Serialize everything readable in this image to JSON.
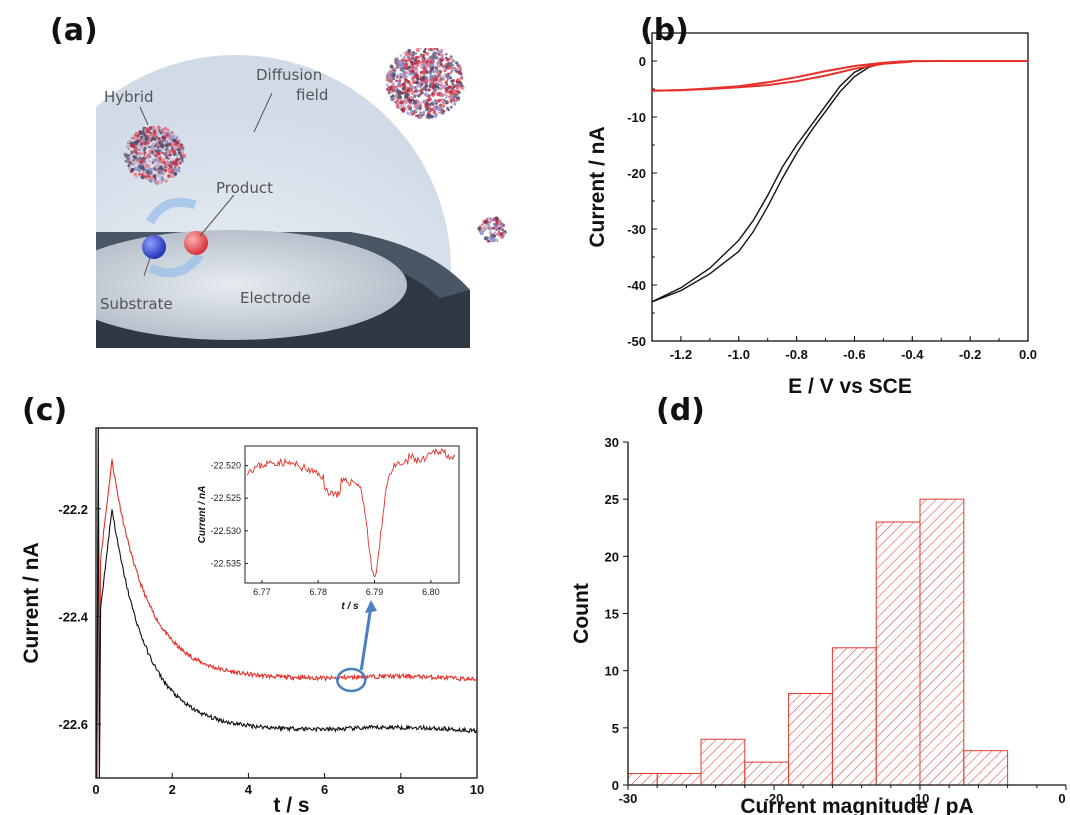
{
  "panels": {
    "a": {
      "label": "(a)",
      "labels": {
        "hybrid": "Hybrid",
        "diffusion1": "Diffusion",
        "diffusion2": "field",
        "product": "Product",
        "substrate": "Substrate",
        "electrode": "Electrode"
      }
    },
    "b": {
      "label": "(b)"
    },
    "c": {
      "label": "(c)"
    },
    "d": {
      "label": "(d)"
    }
  },
  "colors": {
    "red": "#e8302a",
    "black": "#111111",
    "arrow": "#4a7fc1",
    "hatch": "#e23a32"
  },
  "chart_data": [
    {
      "panel": "b",
      "type": "line",
      "xlabel": "E / V vs SCE",
      "ylabel": "Current / nA",
      "xlim": [
        -1.3,
        0.0
      ],
      "ylim": [
        -50,
        5
      ],
      "xticks": [
        -1.2,
        -1.0,
        -0.8,
        -0.6,
        -0.4,
        -0.2,
        0.0
      ],
      "xtick_labels": [
        "-1.2",
        "-1.0",
        "-0.8",
        "-0.6",
        "-0.4",
        "-0.2",
        "0.0"
      ],
      "yticks": [
        0,
        -10,
        -20,
        -30,
        -40,
        -50
      ],
      "ytick_labels": [
        "0",
        "-10",
        "-20",
        "-30",
        "-40",
        "-50"
      ],
      "series": [
        {
          "color": "black",
          "x": [
            -1.3,
            -1.2,
            -1.1,
            -1.0,
            -0.95,
            -0.9,
            -0.85,
            -0.8,
            -0.75,
            -0.7,
            -0.65,
            -0.6,
            -0.55,
            -0.5,
            -0.45,
            -0.4,
            -0.3,
            -0.2,
            -0.1,
            0.0
          ],
          "y": [
            -43,
            -40.5,
            -37,
            -32,
            -28.5,
            -24,
            -19,
            -15,
            -11.5,
            -8,
            -4.5,
            -2,
            -0.8,
            -0.3,
            -0.1,
            0,
            0,
            0,
            0,
            0
          ]
        },
        {
          "color": "black",
          "x": [
            -1.3,
            -1.2,
            -1.1,
            -1.0,
            -0.95,
            -0.9,
            -0.85,
            -0.8,
            -0.75,
            -0.7,
            -0.65,
            -0.6,
            -0.55,
            -0.5,
            -0.45,
            -0.4
          ],
          "y": [
            -43,
            -41,
            -38,
            -34,
            -30.5,
            -26,
            -21,
            -16.5,
            -12.5,
            -9,
            -5.5,
            -2.8,
            -1.1,
            -0.4,
            -0.1,
            0
          ]
        },
        {
          "color": "red",
          "x": [
            -1.3,
            -1.2,
            -1.1,
            -1.0,
            -0.9,
            -0.8,
            -0.7,
            -0.6,
            -0.5,
            -0.4,
            -0.3,
            -0.2,
            -0.1,
            0.0
          ],
          "y": [
            -5.3,
            -5.2,
            -4.9,
            -4.5,
            -3.8,
            -2.9,
            -1.8,
            -0.9,
            -0.3,
            -0.05,
            0,
            0,
            0,
            0
          ]
        },
        {
          "color": "red",
          "x": [
            -1.3,
            -1.2,
            -1.1,
            -1.0,
            -0.9,
            -0.8,
            -0.7,
            -0.6,
            -0.5,
            -0.4
          ],
          "y": [
            -5.3,
            -5.2,
            -5.0,
            -4.7,
            -4.3,
            -3.6,
            -2.6,
            -1.4,
            -0.5,
            -0.1
          ]
        }
      ]
    },
    {
      "panel": "c",
      "type": "line",
      "xlabel": "t / s",
      "ylabel": "Current / nA",
      "xlim": [
        0,
        10
      ],
      "ylim": [
        -22.7,
        -22.05
      ],
      "xticks": [
        0,
        2,
        4,
        6,
        8,
        10
      ],
      "xtick_labels": [
        "0",
        "2",
        "4",
        "6",
        "8",
        "10"
      ],
      "yticks": [
        -22.2,
        -22.4,
        -22.6
      ],
      "ytick_labels": [
        "-22.2",
        "-22.4",
        "-22.6"
      ],
      "series": [
        {
          "color": "red",
          "plateau": -22.515,
          "peak": -22.11,
          "peak_t": 0.42
        },
        {
          "color": "black",
          "plateau": -22.61,
          "peak": -22.2,
          "peak_t": 0.42
        }
      ],
      "inset": {
        "xlabel": "t / s",
        "ylabel": "Current / nA",
        "xlim": [
          6.767,
          6.805
        ],
        "ylim": [
          -22.538,
          -22.517
        ],
        "xticks": [
          6.77,
          6.78,
          6.79,
          6.8
        ],
        "xtick_labels": [
          "6.77",
          "6.78",
          "6.79",
          "6.80"
        ],
        "yticks": [
          -22.52,
          -22.525,
          -22.53,
          -22.535
        ],
        "ytick_labels": [
          "-22.520",
          "-22.525",
          "-22.530",
          "-22.535"
        ],
        "spike_t": 6.79,
        "spike_min": -22.5365,
        "baseline": -22.521
      }
    },
    {
      "panel": "d",
      "type": "bar",
      "xlabel": "Current magnitude / pA",
      "ylabel": "Count",
      "xlim": [
        -30,
        0
      ],
      "ylim": [
        0,
        30
      ],
      "xticks": [
        -30,
        -20,
        -10,
        0
      ],
      "xtick_labels": [
        "-30",
        "-20",
        "-10",
        "0"
      ],
      "yticks": [
        0,
        5,
        10,
        15,
        20,
        25,
        30
      ],
      "ytick_labels": [
        "0",
        "5",
        "10",
        "15",
        "20",
        "25",
        "30"
      ],
      "bins": [
        {
          "x0": -30,
          "x1": -28,
          "count": 1
        },
        {
          "x0": -28,
          "x1": -25,
          "count": 1
        },
        {
          "x0": -25,
          "x1": -22,
          "count": 4
        },
        {
          "x0": -22,
          "x1": -19,
          "count": 2
        },
        {
          "x0": -19,
          "x1": -16,
          "count": 8
        },
        {
          "x0": -16,
          "x1": -13,
          "count": 12
        },
        {
          "x0": -13,
          "x1": -10,
          "count": 23
        },
        {
          "x0": -10,
          "x1": -7,
          "count": 25
        },
        {
          "x0": -7,
          "x1": -4,
          "count": 3
        }
      ]
    }
  ]
}
